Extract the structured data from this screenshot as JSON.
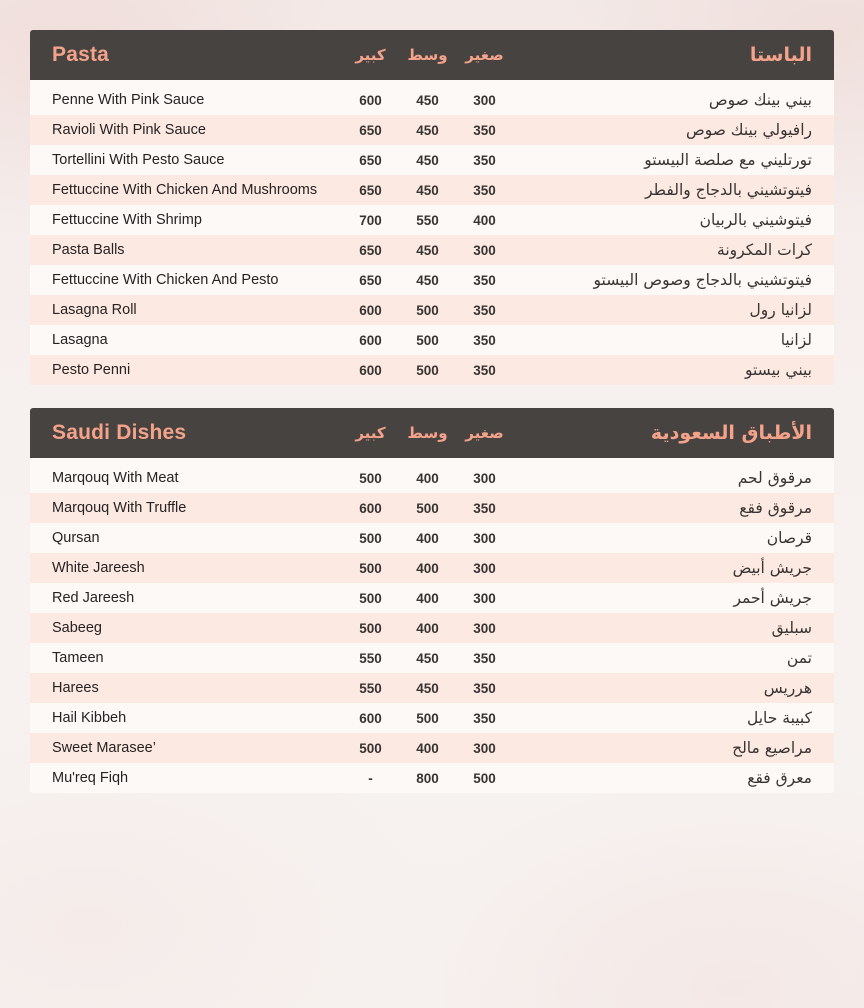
{
  "colors": {
    "accent": "#f4a38a",
    "header_bg": "#474341",
    "stripe": "#fce9e2",
    "body_bg": "#fdf9f7"
  },
  "columns": {
    "large": "كبير",
    "medium": "وسط",
    "small": "صغير"
  },
  "sections": [
    {
      "title_en": "Pasta",
      "title_ar": "الباستا",
      "items": [
        {
          "en": "Penne With Pink Sauce",
          "ar": "بيني بينك صوص",
          "large": "600",
          "medium": "450",
          "small": "300"
        },
        {
          "en": "Ravioli With Pink Sauce",
          "ar": "رافيولي بينك صوص",
          "large": "650",
          "medium": "450",
          "small": "350"
        },
        {
          "en": "Tortellini With Pesto Sauce",
          "ar": "تورتليني مع صلصة البيستو",
          "large": "650",
          "medium": "450",
          "small": "350"
        },
        {
          "en": "Fettuccine With Chicken And Mushrooms",
          "ar": "فيتوتشيني بالدجاج والفطر",
          "large": "650",
          "medium": "450",
          "small": "350"
        },
        {
          "en": "Fettuccine With Shrimp",
          "ar": "فيتوشيني بالربيان",
          "large": "700",
          "medium": "550",
          "small": "400"
        },
        {
          "en": "Pasta Balls",
          "ar": "كرات المكرونة",
          "large": "650",
          "medium": "450",
          "small": "300"
        },
        {
          "en": "Fettuccine With Chicken And Pesto",
          "ar": "فيتوتشيني بالدجاج وصوص البيستو",
          "large": "650",
          "medium": "450",
          "small": "350"
        },
        {
          "en": "Lasagna Roll",
          "ar": "لزانيا رول",
          "large": "600",
          "medium": "500",
          "small": "350"
        },
        {
          "en": "Lasagna",
          "ar": "لزانيا",
          "large": "600",
          "medium": "500",
          "small": "350"
        },
        {
          "en": "Pesto Penni",
          "ar": "بيني بيستو",
          "large": "600",
          "medium": "500",
          "small": "350"
        }
      ]
    },
    {
      "title_en": "Saudi Dishes",
      "title_ar": "الأطباق السعودية",
      "items": [
        {
          "en": "Marqouq With Meat",
          "ar": "مرقوق لحم",
          "large": "500",
          "medium": "400",
          "small": "300"
        },
        {
          "en": "Marqouq With Truffle",
          "ar": "مرقوق فقع",
          "large": "600",
          "medium": "500",
          "small": "350"
        },
        {
          "en": "Qursan",
          "ar": "قرصان",
          "large": "500",
          "medium": "400",
          "small": "300"
        },
        {
          "en": "White Jareesh",
          "ar": "جريش أبيض",
          "large": "500",
          "medium": "400",
          "small": "300"
        },
        {
          "en": "Red Jareesh",
          "ar": "جريش أحمر",
          "large": "500",
          "medium": "400",
          "small": "300"
        },
        {
          "en": "Sabeeg",
          "ar": "سبليق",
          "large": "500",
          "medium": "400",
          "small": "300"
        },
        {
          "en": "Tameen",
          "ar": "تمن",
          "large": "550",
          "medium": "450",
          "small": "350"
        },
        {
          "en": "Harees",
          "ar": "هرريس",
          "large": "550",
          "medium": "450",
          "small": "350"
        },
        {
          "en": "Hail Kibbeh",
          "ar": "كبيبة حايل",
          "large": "600",
          "medium": "500",
          "small": "350"
        },
        {
          "en": "Sweet Marasee’",
          "ar": "مراصيع مالح",
          "large": "500",
          "medium": "400",
          "small": "300"
        },
        {
          "en": "Mu'req Fiqh",
          "ar": "معرق فقع",
          "large": "-",
          "medium": "800",
          "small": "500"
        }
      ]
    }
  ]
}
